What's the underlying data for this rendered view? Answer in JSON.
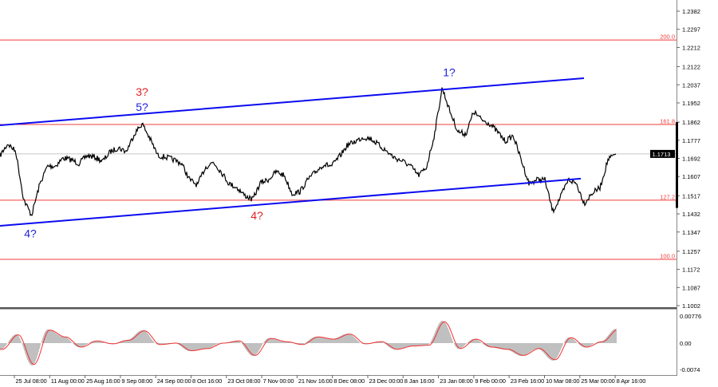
{
  "chart_data": {
    "type": "line",
    "title": "",
    "price_axis": {
      "ticks": [
        "1.2382",
        "1.2297",
        "1.2212",
        "1.2122",
        "1.2037",
        "1.1952",
        "1.1862",
        "1.1777",
        "1.1692",
        "1.1607",
        "1.1517",
        "1.1432",
        "1.1347",
        "1.1257",
        "1.1172",
        "1.1087",
        "1.1002"
      ],
      "ylim": [
        1.1002,
        1.2382
      ]
    },
    "current_price": "1.1713",
    "time_axis": {
      "ticks": [
        "00",
        "25 Jul 08:00",
        "11 Aug 00:00",
        "25 Aug 16:00",
        "9 Sep 08:00",
        "24 Sep 00:00",
        "8 Oct 16:00",
        "23 Oct 08:00",
        "7 Nov 00:00",
        "21 Nov 16:00",
        "8 Dec 08:00",
        "23 Dec 00:00",
        "8 Jan 16:00",
        "23 Jan 08:00",
        "9 Feb 00:00",
        "23 Feb 16:00",
        "10 Mar 08:00",
        "25 Mar 00:00",
        "8 Apr 16:00"
      ]
    },
    "price_series": {
      "color": "#000000",
      "values": [
        1.1705,
        1.1761,
        1.1724,
        1.1499,
        1.1425,
        1.1567,
        1.1656,
        1.1656,
        1.1694,
        1.1686,
        1.1668,
        1.1705,
        1.1698,
        1.1679,
        1.1724,
        1.1742,
        1.1724,
        1.1806,
        1.1855,
        1.1784,
        1.1705,
        1.1698,
        1.1686,
        1.1668,
        1.1593,
        1.1567,
        1.1649,
        1.1675,
        1.163,
        1.1574,
        1.1555,
        1.1518,
        1.1499,
        1.1578,
        1.1593,
        1.163,
        1.1612,
        1.1526,
        1.1537,
        1.1593,
        1.163,
        1.1664,
        1.1656,
        1.1701,
        1.1754,
        1.1772,
        1.1791,
        1.1784,
        1.1754,
        1.1724,
        1.1694,
        1.1679,
        1.1656,
        1.1612,
        1.1649,
        1.1799,
        1.2023,
        1.1911,
        1.1817,
        1.1806,
        1.1911,
        1.1873,
        1.1855,
        1.1817,
        1.1772,
        1.1799,
        1.1686,
        1.1574,
        1.1593,
        1.1593,
        1.1443,
        1.1511,
        1.1593,
        1.1574,
        1.1481,
        1.1529,
        1.1555,
        1.1686,
        1.1713
      ]
    },
    "fib_levels": [
      {
        "label": "200.0",
        "price": 1.2247
      },
      {
        "label": "161.8",
        "price": 1.1851
      },
      {
        "label": "127.2",
        "price": 1.1496
      },
      {
        "label": "100.0",
        "price": 1.1219
      }
    ],
    "fib_color": "#f23c3c",
    "channel_lines": {
      "color": "#0b0bf0",
      "upper": {
        "start_price": 1.1847,
        "end_price": 1.2068
      },
      "lower": {
        "start_price": 1.1376,
        "end_price": 1.1597
      }
    },
    "wave_labels": [
      {
        "text": "3?",
        "color": "#e02020",
        "price": 1.1994
      },
      {
        "text": "5?",
        "color": "#2020e0",
        "price": 1.194
      },
      {
        "text": "4?",
        "color": "#2020e0",
        "price": 1.134
      },
      {
        "text": "4?",
        "color": "#e02020",
        "price": 1.1425
      },
      {
        "text": "1?",
        "color": "#2020e0",
        "price": 1.2095
      }
    ],
    "oscillator": {
      "ticks": [
        "0.00776",
        "0.00",
        "-0.0074"
      ],
      "ylim": [
        -0.0074,
        0.00776
      ],
      "histogram_color": "#c0c0c0",
      "signal_color": "#f03030",
      "values": [
        -0.0017,
        0.0023,
        -0.0059,
        0.0036,
        0.0017,
        -0.0011,
        0.0006,
        -0.0002,
        0.0008,
        0.0034,
        -0.0004,
        0,
        -0.0021,
        -0.0015,
        0,
        0.0006,
        -0.0034,
        0.0013,
        0.0004,
        -0.0004,
        0.0017,
        0.0011,
        0.0025,
        -0.0002,
        0.0004,
        -0.0017,
        -0.0008,
        -0.0006,
        0.0059,
        -0.0015,
        0.0011,
        -0.0011,
        -0.0017,
        -0.0034,
        -0.0015,
        -0.0046,
        0.0015,
        -0.0011,
        0.0004,
        0.0038
      ]
    }
  }
}
